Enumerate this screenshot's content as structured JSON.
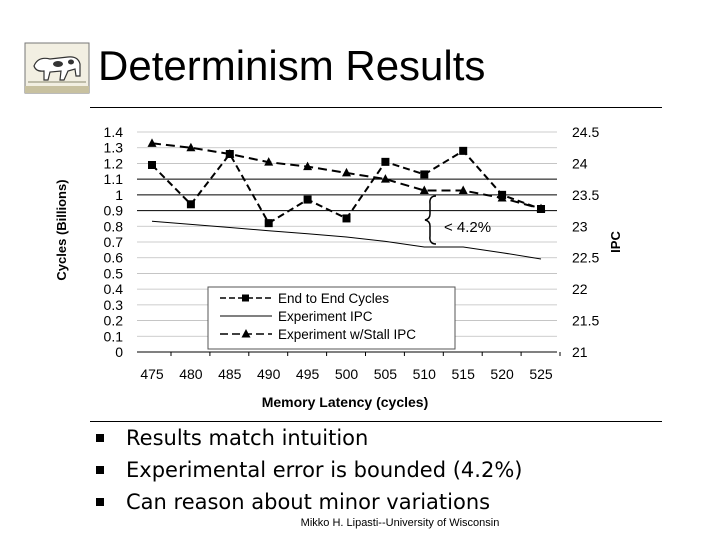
{
  "slide": {
    "title": "Determinism Results",
    "bullets": [
      "Results match intuition",
      "Experimental error is bounded (4.2%)",
      "Can reason about minor variations"
    ],
    "footer": "Mikko H. Lipasti--University of Wisconsin",
    "logo_icon": "cow-logo-icon"
  },
  "chart_data": {
    "type": "line",
    "xlabel": "Memory Latency (cycles)",
    "ylabel": "Cycles (Billions)",
    "y2label": "IPC",
    "x": [
      475,
      480,
      485,
      490,
      495,
      500,
      505,
      510,
      515,
      520,
      525
    ],
    "ylim": [
      0,
      1.4
    ],
    "y2lim": [
      21,
      24.5
    ],
    "yticks": [
      "0",
      "0.1",
      "0.2",
      "0.3",
      "0.4",
      "0.5",
      "0.6",
      "0.7",
      "0.8",
      "0.9",
      "1",
      "1.1",
      "1.2",
      "1.3",
      "1.4"
    ],
    "y2ticks": [
      "21",
      "21.5",
      "22",
      "22.5",
      "23",
      "23.5",
      "24",
      "24.5"
    ],
    "grid": true,
    "legend_position": "bottom-center",
    "annotation": "< 4.2%",
    "series": [
      {
        "name": "End to End Cycles",
        "axis": "left",
        "marker": "square",
        "style": "dashed",
        "values": [
          1.19,
          0.94,
          1.26,
          0.82,
          0.97,
          0.85,
          1.21,
          1.13,
          1.28,
          1.0,
          0.91
        ]
      },
      {
        "name": "Experiment IPC",
        "axis": "right",
        "marker": "none",
        "style": "solid",
        "values": [
          23.08,
          23.03,
          22.98,
          22.93,
          22.88,
          22.83,
          22.76,
          22.67,
          22.67,
          22.58,
          22.48
        ]
      },
      {
        "name": "Experiment w/Stall IPC",
        "axis": "right",
        "marker": "triangle",
        "style": "dashed",
        "values": [
          24.32,
          24.25,
          24.15,
          24.02,
          23.95,
          23.85,
          23.75,
          23.57,
          23.57,
          23.45,
          23.28
        ]
      }
    ]
  }
}
